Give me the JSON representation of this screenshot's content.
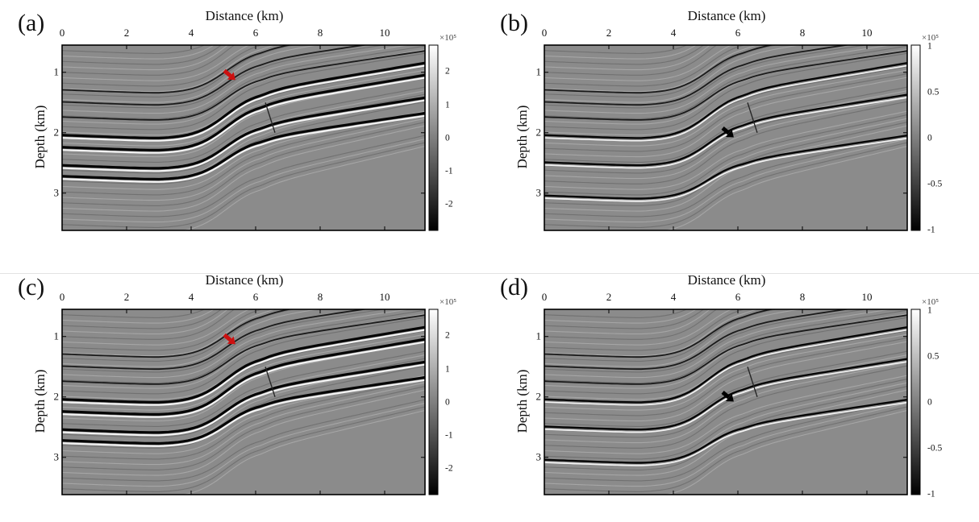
{
  "figure": {
    "x_axis_title": "Distance (km)",
    "y_axis_title": "Depth (km)",
    "x_ticks": [
      "0",
      "2",
      "4",
      "6",
      "8",
      "10"
    ],
    "y_ticks": [
      "1",
      "2",
      "3"
    ],
    "colors": {
      "background": "#ffffff",
      "section_gray": "#8b8b8b",
      "red_arrow": "#cc1010",
      "black_arrow": "#000000"
    },
    "panels": [
      {
        "label": "(a)",
        "colorbar_exponent": "×10⁵",
        "colorbar_ticks": [
          "2",
          "1",
          "0",
          "-1",
          "-2"
        ],
        "arrow_color": "red"
      },
      {
        "label": "(b)",
        "colorbar_exponent": "×10⁵",
        "colorbar_ticks": [
          "1",
          "0.5",
          "0",
          "-0.5",
          "-1"
        ],
        "arrow_color": "black"
      },
      {
        "label": "(c)",
        "colorbar_exponent": "×10⁵",
        "colorbar_ticks": [
          "2",
          "1",
          "0",
          "-1",
          "-2"
        ],
        "arrow_color": "red"
      },
      {
        "label": "(d)",
        "colorbar_exponent": "×10⁵",
        "colorbar_ticks": [
          "1",
          "0.5",
          "0",
          "-0.5",
          "-1"
        ],
        "arrow_color": "black"
      }
    ]
  }
}
